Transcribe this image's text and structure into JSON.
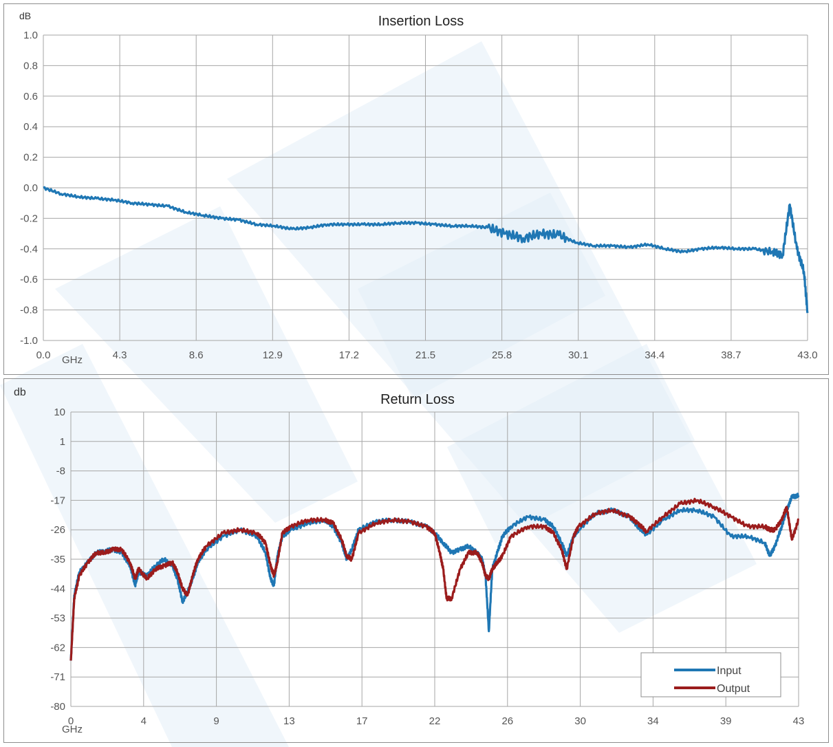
{
  "charts": [
    {
      "id": "insertion-loss",
      "title": "Insertion Loss",
      "unit_label": "dB",
      "x_unit_label": "GHz",
      "y_ticks": [
        "1.0",
        "0.8",
        "0.6",
        "0.4",
        "0.2",
        "0.0",
        "-0.2",
        "-0.4",
        "-0.6",
        "-0.8",
        "-1.0"
      ],
      "x_ticks": [
        "0.0",
        "4.3",
        "8.6",
        "12.9",
        "17.2",
        "21.5",
        "25.8",
        "30.1",
        "34.4",
        "38.7",
        "43.0"
      ]
    },
    {
      "id": "return-loss",
      "title": "Return Loss",
      "unit_label": "db",
      "x_unit_label": "GHz",
      "y_ticks": [
        "10",
        "1",
        "-8",
        "-17",
        "-26",
        "-35",
        "-44",
        "-53",
        "-62",
        "-71",
        "-80"
      ],
      "x_ticks": [
        "0",
        "4",
        "9",
        "13",
        "17",
        "22",
        "26",
        "30",
        "34",
        "39",
        "43"
      ],
      "legend": [
        "Input",
        "Output"
      ]
    }
  ],
  "colors": {
    "input": "#1f77b4",
    "output": "#9b1c1c",
    "grid": "#a6a6a6",
    "watermark": "#e3eef8"
  },
  "chart_data": [
    {
      "type": "line",
      "title": "Insertion Loss",
      "ylabel": "dB",
      "xlabel": "GHz",
      "xlim": [
        0,
        43
      ],
      "ylim": [
        -1.0,
        1.0
      ],
      "grid": true,
      "series": [
        {
          "x": [
            0,
            1,
            2,
            3,
            4,
            5,
            6,
            7,
            8,
            9,
            10,
            11,
            12,
            13,
            14,
            15,
            16,
            17,
            18,
            19,
            20,
            21,
            22,
            23,
            24,
            25,
            26,
            27,
            28,
            29,
            30,
            31,
            32,
            33,
            34,
            35,
            36,
            37,
            38,
            39,
            40,
            41,
            41.6,
            42,
            42.4,
            42.8,
            43
          ],
          "values": [
            0.0,
            -0.04,
            -0.06,
            -0.07,
            -0.08,
            -0.1,
            -0.11,
            -0.12,
            -0.16,
            -0.18,
            -0.2,
            -0.21,
            -0.24,
            -0.25,
            -0.27,
            -0.26,
            -0.24,
            -0.24,
            -0.24,
            -0.24,
            -0.23,
            -0.23,
            -0.24,
            -0.25,
            -0.25,
            -0.26,
            -0.3,
            -0.33,
            -0.3,
            -0.31,
            -0.36,
            -0.38,
            -0.38,
            -0.39,
            -0.37,
            -0.4,
            -0.42,
            -0.4,
            -0.39,
            -0.4,
            -0.4,
            -0.42,
            -0.44,
            -0.11,
            -0.4,
            -0.55,
            -0.82
          ]
        }
      ]
    },
    {
      "type": "line",
      "title": "Return Loss",
      "ylabel": "db",
      "xlabel": "GHz",
      "xlim": [
        0,
        43
      ],
      "ylim": [
        -80,
        10
      ],
      "grid": true,
      "legend_position": "bottom-right",
      "series": [
        {
          "name": "Input",
          "x": [
            0,
            0.2,
            0.5,
            1,
            1.5,
            2,
            2.5,
            3,
            3.5,
            3.8,
            4,
            4.5,
            5,
            5.5,
            6,
            6.3,
            6.6,
            6.9,
            7.2,
            7.5,
            8,
            9,
            10,
            11,
            11.5,
            11.8,
            12,
            12.2,
            12.5,
            13,
            14,
            15,
            15.5,
            16,
            16.3,
            16.6,
            17,
            18,
            19,
            20,
            21,
            21.5,
            22,
            22.5,
            23,
            23.5,
            24,
            24.3,
            24.5,
            24.7,
            24.9,
            25.2,
            25.5,
            26,
            27,
            28,
            28.5,
            29,
            29.3,
            29.7,
            30,
            31,
            32,
            33,
            33.5,
            34,
            35,
            36,
            37,
            38,
            39,
            40,
            41,
            41.3,
            41.6,
            42,
            42.3,
            42.6,
            43
          ],
          "values": [
            -66,
            -46,
            -39,
            -36,
            -33,
            -32.5,
            -32,
            -33,
            -37,
            -43,
            -39,
            -40,
            -37,
            -35,
            -37,
            -41,
            -48,
            -45,
            -41,
            -36,
            -32,
            -28,
            -26,
            -28,
            -33,
            -41,
            -43,
            -34,
            -28,
            -26,
            -24,
            -23,
            -25,
            -30,
            -35,
            -32,
            -26,
            -23.5,
            -23,
            -23.5,
            -25,
            -27,
            -30,
            -33,
            -32,
            -31,
            -33,
            -35,
            -40,
            -57,
            -38,
            -33,
            -28,
            -25,
            -22,
            -23,
            -25,
            -30,
            -34,
            -28,
            -26,
            -21,
            -20,
            -22,
            -25,
            -27.5,
            -23,
            -20,
            -20,
            -22,
            -28,
            -28,
            -30,
            -34,
            -31,
            -25,
            -20,
            -16,
            -15.5
          ]
        },
        {
          "name": "Output",
          "x": [
            0,
            0.2,
            0.5,
            1,
            1.5,
            2,
            2.5,
            3,
            3.5,
            3.8,
            4,
            4.5,
            5,
            5.5,
            6,
            6.3,
            6.6,
            6.9,
            7.2,
            7.5,
            8,
            9,
            10,
            11,
            11.5,
            11.8,
            12,
            12.2,
            12.5,
            13,
            14,
            15,
            15.5,
            16,
            16.3,
            16.6,
            17,
            18,
            19,
            20,
            21,
            21.5,
            21.8,
            22,
            22.2,
            22.5,
            23,
            23.5,
            24,
            24.3,
            24.5,
            24.7,
            24.9,
            25.2,
            25.5,
            26,
            27,
            28,
            28.5,
            29,
            29.3,
            29.7,
            30,
            31,
            32,
            33,
            33.5,
            34,
            35,
            36,
            37,
            38,
            39,
            40,
            41,
            41.3,
            41.6,
            42,
            42.3,
            42.6,
            43
          ],
          "values": [
            -66,
            -47,
            -40,
            -36,
            -33,
            -33,
            -32,
            -32,
            -36,
            -41,
            -38,
            -41,
            -38,
            -37,
            -36,
            -39,
            -44,
            -46,
            -40,
            -35,
            -31,
            -27,
            -26,
            -27,
            -30,
            -37,
            -40,
            -36,
            -27,
            -25,
            -23,
            -23,
            -24,
            -29,
            -34,
            -35,
            -27,
            -24,
            -23,
            -23.5,
            -25,
            -27,
            -33,
            -38,
            -47,
            -47,
            -38,
            -33,
            -33,
            -36,
            -40,
            -41,
            -38,
            -36,
            -34,
            -28,
            -25,
            -25,
            -27,
            -32,
            -38,
            -28,
            -25,
            -21,
            -20,
            -22,
            -24,
            -26.5,
            -22,
            -18,
            -17,
            -19,
            -22,
            -25,
            -25,
            -26,
            -26,
            -23,
            -19,
            -29,
            -23
          ]
        }
      ]
    }
  ]
}
